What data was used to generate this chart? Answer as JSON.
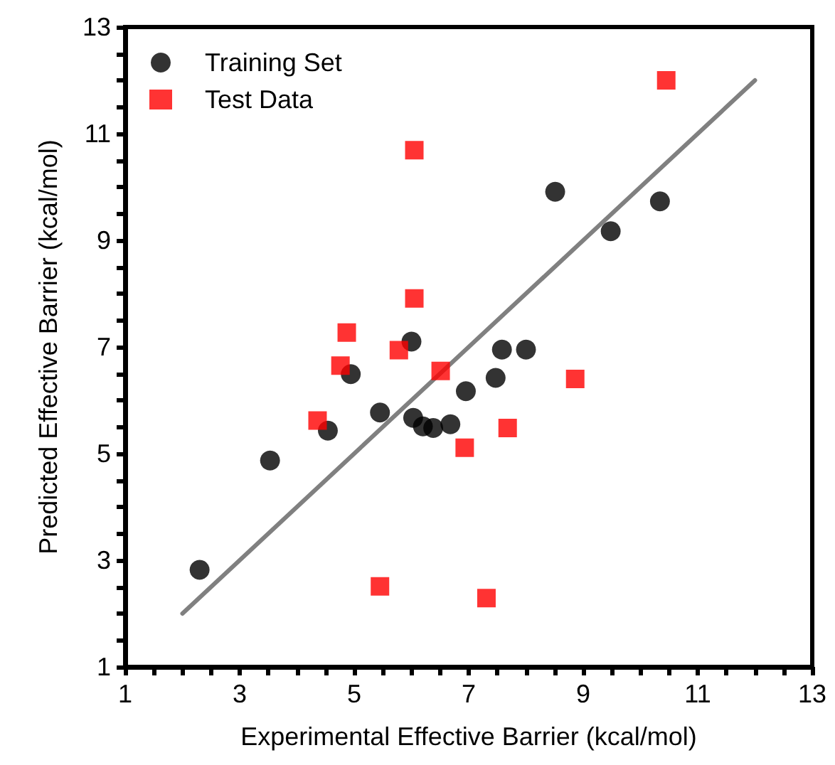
{
  "chart_data": {
    "type": "scatter",
    "xlabel": "Experimental Effective Barrier (kcal/mol)",
    "ylabel": "Predicted Effective Barrier (kcal/mol)",
    "xlim": [
      1,
      13
    ],
    "ylim": [
      1,
      13
    ],
    "xticks": [
      1,
      {
        "value": 1.5,
        "label": null
      },
      {
        "value": 2,
        "label": null
      },
      {
        "value": 2.5,
        "label": null
      },
      3,
      {
        "value": 3.5,
        "label": null
      },
      {
        "value": 4,
        "label": null
      },
      {
        "value": 4.5,
        "label": null
      },
      5,
      {
        "value": 5.5,
        "label": null
      },
      {
        "value": 6,
        "label": null
      },
      {
        "value": 6.5,
        "label": null
      },
      7,
      {
        "value": 7.5,
        "label": null
      },
      {
        "value": 8,
        "label": null
      },
      {
        "value": 8.5,
        "label": null
      },
      9,
      {
        "value": 9.5,
        "label": null
      },
      {
        "value": 10,
        "label": null
      },
      {
        "value": 10.5,
        "label": null
      },
      11,
      {
        "value": 11.5,
        "label": null
      },
      {
        "value": 12,
        "label": null
      },
      {
        "value": 12.5,
        "label": null
      },
      13
    ],
    "yticks": [
      1,
      {
        "value": 1.5,
        "label": null
      },
      {
        "value": 2,
        "label": null
      },
      {
        "value": 2.5,
        "label": null
      },
      3,
      {
        "value": 3.5,
        "label": null
      },
      {
        "value": 4,
        "label": null
      },
      {
        "value": 4.5,
        "label": null
      },
      5,
      {
        "value": 5.5,
        "label": null
      },
      {
        "value": 6,
        "label": null
      },
      {
        "value": 6.5,
        "label": null
      },
      7,
      {
        "value": 7.5,
        "label": null
      },
      {
        "value": 8,
        "label": null
      },
      {
        "value": 8.5,
        "label": null
      },
      9,
      {
        "value": 9.5,
        "label": null
      },
      {
        "value": 10,
        "label": null
      },
      {
        "value": 10.5,
        "label": null
      },
      11,
      {
        "value": 11.5,
        "label": null
      },
      {
        "value": 12,
        "label": null
      },
      {
        "value": 12.5,
        "label": null
      },
      13
    ],
    "grid": false,
    "legend": "top left",
    "series": [
      {
        "name": "Training Set",
        "color": "#000000",
        "marker": "circle",
        "x": [
          2.3,
          3.53,
          4.54,
          4.94,
          5.45,
          6.0,
          6.03,
          6.2,
          6.38,
          6.68,
          6.95,
          7.47,
          7.58,
          8.0,
          8.51,
          9.48,
          10.34
        ],
        "values": [
          2.82,
          4.87,
          5.43,
          6.49,
          5.77,
          7.1,
          5.67,
          5.51,
          5.48,
          5.55,
          6.17,
          6.42,
          6.95,
          6.95,
          9.91,
          9.17,
          9.73
        ]
      },
      {
        "name": "Test Data",
        "color": "#ff0000",
        "marker": "square",
        "x": [
          6.05,
          6.05,
          4.87,
          4.76,
          5.78,
          6.51,
          4.36,
          6.93,
          5.45,
          7.31,
          7.68,
          8.86,
          10.45
        ],
        "values": [
          10.69,
          7.91,
          7.27,
          6.65,
          6.94,
          6.55,
          5.62,
          5.11,
          2.51,
          2.29,
          5.48,
          6.4,
          12.0
        ]
      },
      {
        "type": "line",
        "color": "#808080",
        "marker": "none",
        "line_style": "solid",
        "x": [
          2,
          12
        ],
        "values": [
          2,
          12
        ]
      }
    ]
  }
}
